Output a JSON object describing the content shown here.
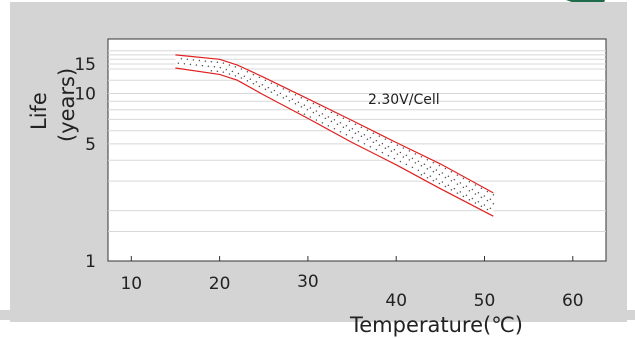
{
  "chart_data": {
    "type": "area",
    "title": "",
    "xlabel": "Temperature(℃)",
    "ylabel_line1": "Life",
    "ylabel_line2": "(years)",
    "xlim": [
      5,
      60
    ],
    "ylim": [
      1,
      18
    ],
    "y_scale": "log",
    "grid": true,
    "x_ticks": [
      {
        "value": 10,
        "label": "10"
      },
      {
        "value": 20,
        "label": "20"
      },
      {
        "value": 30,
        "label": "30"
      },
      {
        "value": 40,
        "label": "40"
      },
      {
        "value": 50,
        "label": "50"
      },
      {
        "value": 60,
        "label": "60"
      }
    ],
    "y_ticks": [
      {
        "value": 1,
        "label": "1"
      },
      {
        "value": 5,
        "label": "5"
      },
      {
        "value": 10,
        "label": "10"
      },
      {
        "value": 15,
        "label": "15"
      }
    ],
    "annotation": "2.30V/Cell",
    "series": [
      {
        "role": "upper",
        "color": "#e02020",
        "points": [
          [
            15,
            17
          ],
          [
            20,
            16
          ],
          [
            22,
            14.8
          ],
          [
            25,
            12.5
          ],
          [
            30,
            9.3
          ],
          [
            35,
            6.9
          ],
          [
            40,
            5.1
          ],
          [
            45,
            3.8
          ],
          [
            51,
            2.55
          ]
        ]
      },
      {
        "role": "lower",
        "color": "#e02020",
        "points": [
          [
            15,
            14.2
          ],
          [
            20,
            13
          ],
          [
            22,
            12
          ],
          [
            25,
            9.8
          ],
          [
            30,
            7.1
          ],
          [
            35,
            5.1
          ],
          [
            40,
            3.75
          ],
          [
            45,
            2.7
          ],
          [
            51,
            1.85
          ]
        ]
      }
    ],
    "colors": {
      "figure_background": "#d4d4d4",
      "plot_background": "#ffffff",
      "grid": "#d8d8d8",
      "band_fill": "#ffffff",
      "dot": "#555555",
      "accent": "#1f6b4a"
    }
  }
}
